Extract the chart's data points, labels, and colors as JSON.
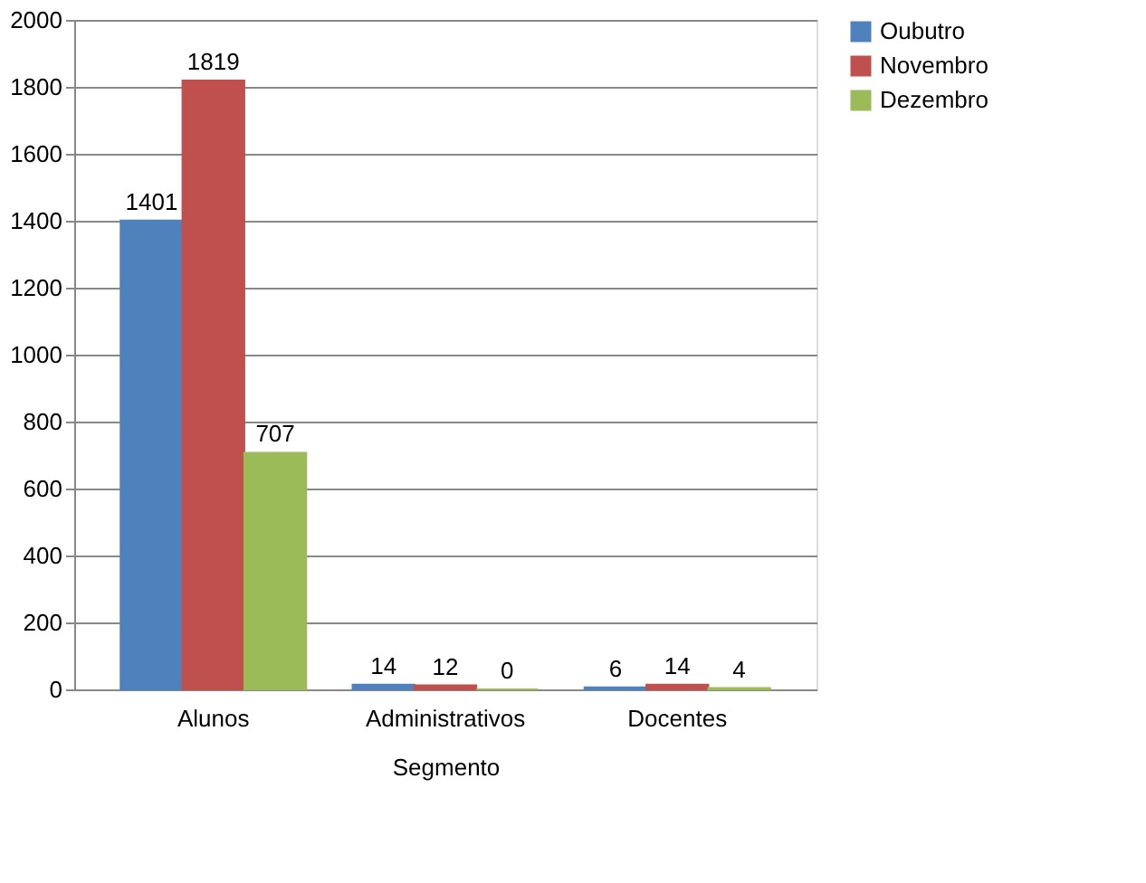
{
  "chart_data": {
    "type": "bar",
    "xlabel": "Segmento",
    "categories": [
      "Alunos",
      "Administrativos",
      "Docentes"
    ],
    "series": [
      {
        "name": "Oubutro",
        "color": "#4f81bd",
        "values": [
          1401,
          14,
          6
        ]
      },
      {
        "name": "Novembro",
        "color": "#c0504d",
        "values": [
          1819,
          12,
          14
        ]
      },
      {
        "name": "Dezembro",
        "color": "#9bbb59",
        "values": [
          707,
          0,
          4
        ]
      }
    ],
    "ylim": [
      0,
      2000
    ],
    "yticks": [
      0,
      200,
      400,
      600,
      800,
      1000,
      1200,
      1400,
      1600,
      1800,
      2000
    ],
    "grid": "y",
    "legend": "right",
    "data_labels": true
  }
}
